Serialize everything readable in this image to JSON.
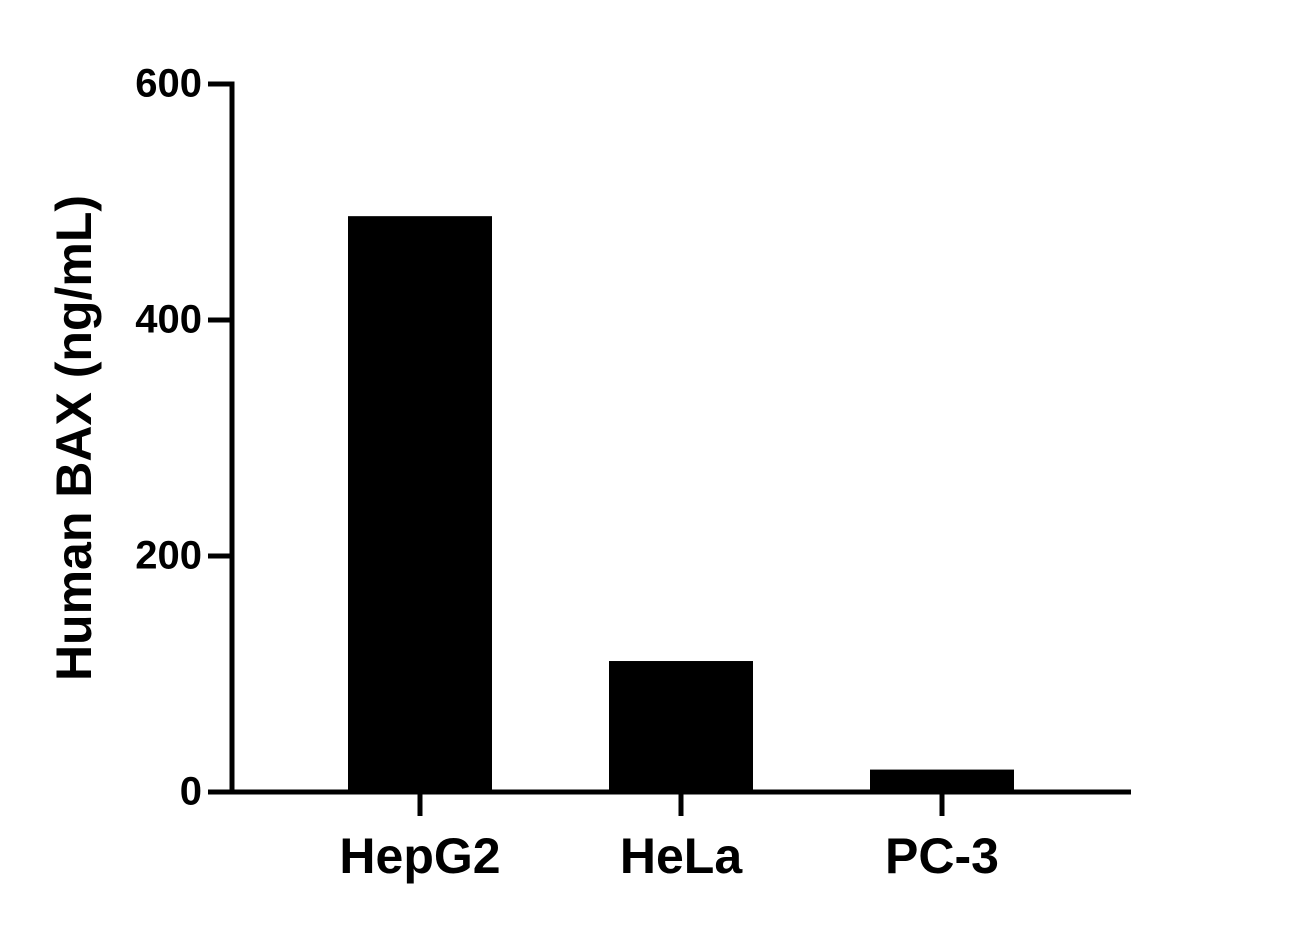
{
  "chart_data": {
    "type": "bar",
    "y_label": "Human BAX (ng/mL)",
    "categories": [
      "HepG2",
      "HeLa",
      "PC-3"
    ],
    "values": [
      488,
      111,
      19
    ],
    "color": "#000000",
    "ylim": [
      0,
      600
    ],
    "yticks": [
      0,
      200,
      400,
      600
    ],
    "grid": false
  }
}
